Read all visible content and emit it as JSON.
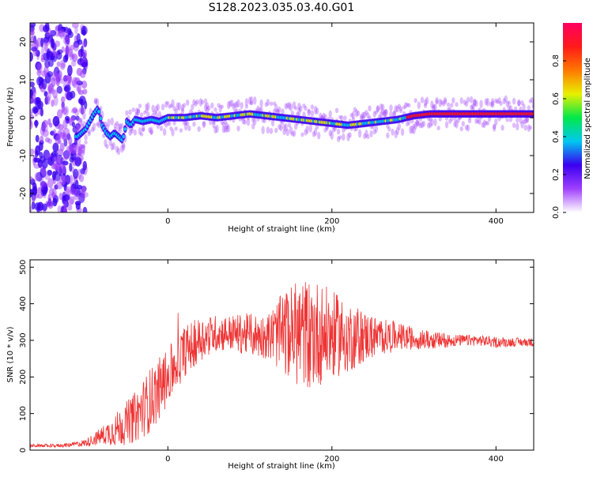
{
  "title": "S128.2023.035.03.40.G01",
  "chart_data": [
    {
      "type": "heatmap",
      "xlabel": "Height of straight line (km)",
      "ylabel": "Frequency (Hz)",
      "xlim": [
        -168,
        446
      ],
      "ylim": [
        -25,
        25
      ],
      "x_ticks": [
        0,
        200,
        400
      ],
      "y_ticks": [
        -20,
        -10,
        0,
        10,
        20
      ],
      "colorbar": {
        "label": "Normalized spectral amplitude",
        "ticks": [
          0.0,
          0.2,
          0.4,
          0.6,
          0.8
        ],
        "range": [
          0,
          1
        ],
        "colormap": [
          "#ffffff",
          "#a040ff",
          "#3a00f0",
          "#00c8f0",
          "#00e84a",
          "#e8f000",
          "#ff7800",
          "#ff1a1a",
          "#ff0060"
        ]
      },
      "ridge": {
        "x": [
          -110,
          -100,
          -95,
          -90,
          -85,
          -80,
          -75,
          -70,
          -65,
          -60,
          -55,
          -50,
          -45,
          -40,
          -30,
          -20,
          -10,
          0,
          20,
          40,
          60,
          80,
          100,
          120,
          140,
          160,
          180,
          200,
          220,
          240,
          260,
          280,
          300,
          320,
          340,
          360,
          380,
          400,
          420,
          446
        ],
        "freq": [
          -5,
          -3,
          -1,
          1,
          2.5,
          -2,
          -4,
          -5,
          -4,
          -5,
          -6,
          -1,
          -2,
          -0.5,
          -1,
          -0.5,
          -1,
          0,
          0,
          0.5,
          0,
          0.5,
          1,
          0.5,
          0,
          -0.5,
          -1,
          -1.5,
          -2,
          -1.5,
          -1,
          -0.5,
          0.5,
          1,
          1,
          1,
          1,
          1,
          1,
          1
        ]
      }
    },
    {
      "type": "line",
      "xlabel": "Height of straight line (km)",
      "ylabel": "SNR (10 * v/v)",
      "xlim": [
        -168,
        446
      ],
      "ylim": [
        0,
        520
      ],
      "x_ticks": [
        0,
        200,
        400
      ],
      "y_ticks": [
        0,
        100,
        200,
        300,
        400,
        500
      ],
      "color": "#ee3333",
      "envelope": {
        "x": [
          -168,
          -140,
          -120,
          -100,
          -80,
          -60,
          -40,
          -20,
          0,
          20,
          40,
          60,
          80,
          100,
          120,
          140,
          160,
          180,
          200,
          220,
          240,
          260,
          280,
          300,
          320,
          340,
          360,
          380,
          400,
          420,
          446
        ],
        "mid": [
          12,
          12,
          14,
          20,
          40,
          60,
          90,
          140,
          200,
          270,
          305,
          320,
          320,
          315,
          310,
          320,
          320,
          320,
          315,
          310,
          310,
          310,
          310,
          305,
          300,
          300,
          300,
          300,
          295,
          295,
          295
        ],
        "amp": [
          4,
          5,
          6,
          10,
          25,
          50,
          70,
          90,
          80,
          70,
          60,
          50,
          50,
          60,
          60,
          110,
          150,
          150,
          120,
          100,
          70,
          50,
          40,
          30,
          25,
          20,
          15,
          15,
          15,
          12,
          12
        ]
      }
    }
  ]
}
